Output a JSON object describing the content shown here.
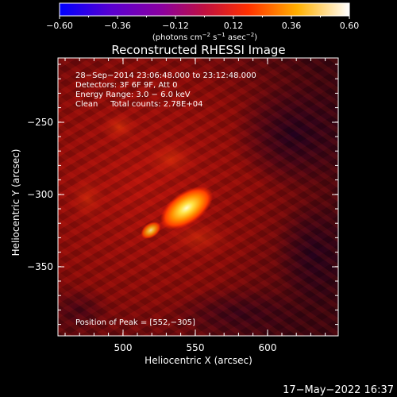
{
  "colorbar": {
    "ticks": [
      "−0.60",
      "−0.36",
      "−0.12",
      "0.12",
      "0.36",
      "0.60"
    ],
    "units_prefix": "(photons cm",
    "units_sup1": "−2",
    "units_mid": " s",
    "units_sup2": "−1",
    "units_mid2": " asec",
    "units_sup3": "−2",
    "units_suffix": ")"
  },
  "plot": {
    "title": "Reconstructed RHESSI Image",
    "info_lines": [
      "28−Sep−2014 23:06:48.000 to 23:12:48.000",
      "Detectors: 3F 6F 9F, Att 0",
      "Energy Range: 3.0 − 6.0 keV",
      "Clean     Total counts: 2.78E+04"
    ],
    "peak_text": "Position of Peak = [552,−305]",
    "xlabel": "Heliocentric X (arcsec)",
    "ylabel": "Heliocentric Y (arcsec)",
    "xticks": [
      "500",
      "550",
      "600"
    ],
    "yticks": [
      "−250",
      "−300",
      "−350"
    ]
  },
  "footer": {
    "timestamp": "17−May−2022 16:37"
  },
  "colors": {
    "background": "#000000",
    "text": "#ffffff"
  }
}
